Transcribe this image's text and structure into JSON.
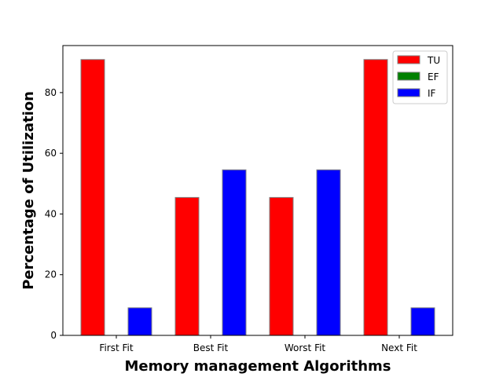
{
  "chart_data": {
    "type": "bar",
    "title": "",
    "xlabel": "Memory management Algorithms",
    "ylabel": "Percentage of Utilization",
    "categories": [
      "First Fit",
      "Best Fit",
      "Worst Fit",
      "Next Fit"
    ],
    "series": [
      {
        "name": "TU",
        "color": "#ff0000",
        "values": [
          90.9,
          45.45,
          45.45,
          90.9
        ]
      },
      {
        "name": "EF",
        "color": "#008000",
        "values": [
          0,
          0,
          0,
          0
        ]
      },
      {
        "name": "IF",
        "color": "#0000ff",
        "values": [
          9.09,
          54.55,
          54.55,
          9.09
        ]
      }
    ],
    "ylim": [
      0,
      95.5
    ],
    "yticks": [
      0,
      20,
      40,
      60,
      80
    ],
    "grid": false,
    "legend_position": "top-right",
    "bar_edge_color": "#808080"
  }
}
